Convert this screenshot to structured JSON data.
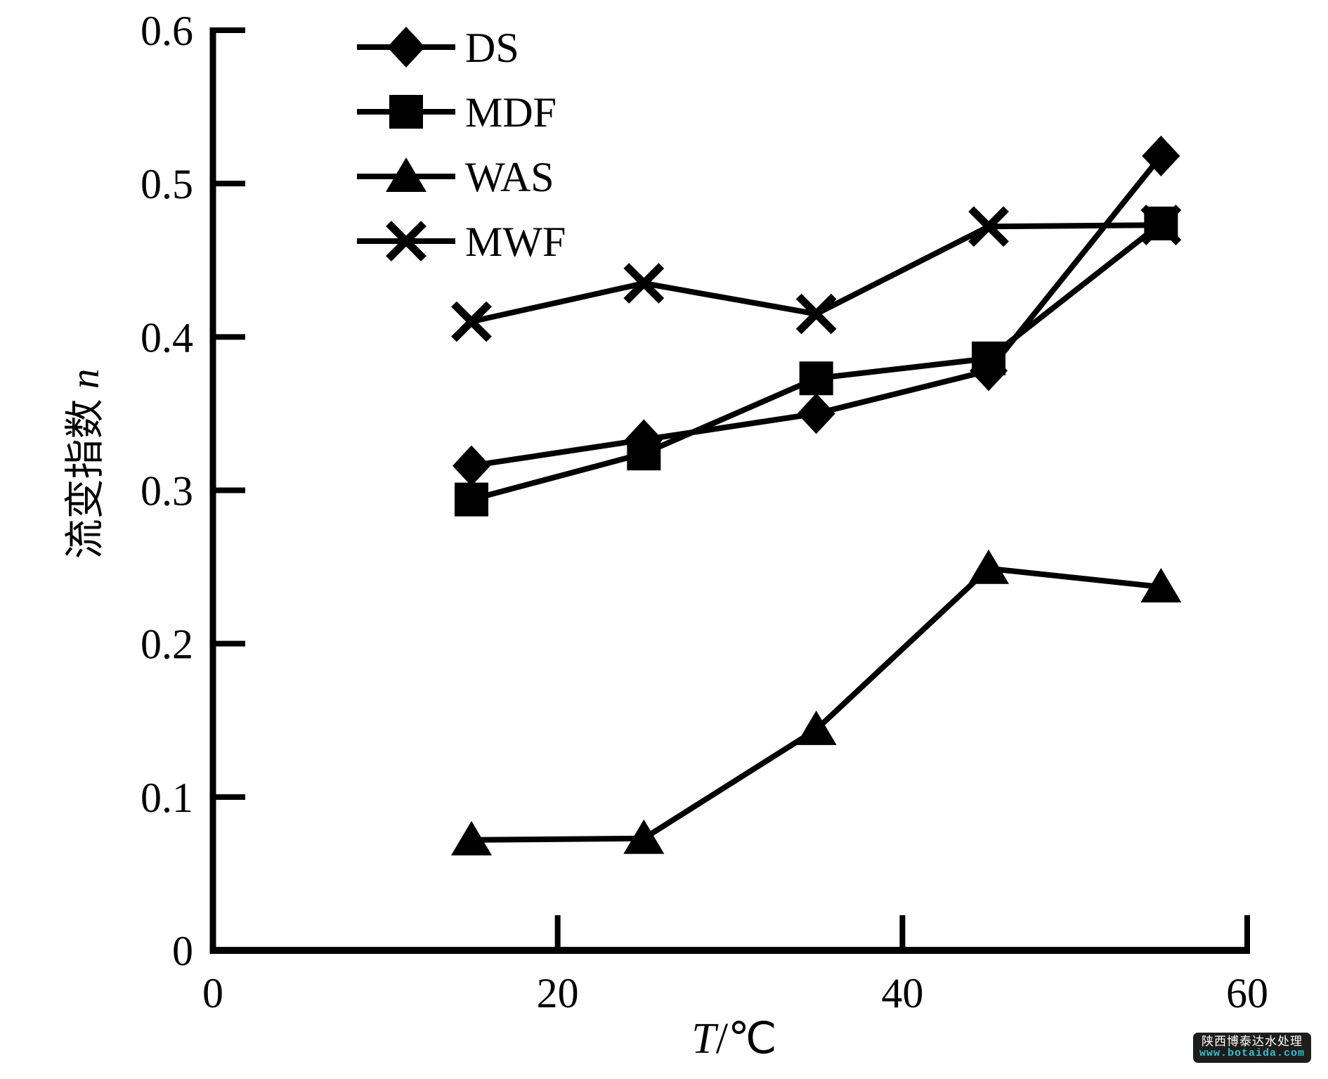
{
  "chart_data": {
    "type": "line",
    "xlabel": "T/℃",
    "xlabel_symbol": "T",
    "xlabel_rest": "/℃",
    "ylabel": "流变指数 n",
    "ylabel_text": "流变指数",
    "ylabel_symbol": "n",
    "xlim": [
      0,
      60
    ],
    "ylim": [
      0,
      0.6
    ],
    "xticks": [
      "0",
      "20",
      "40",
      "60"
    ],
    "yticks": [
      "0",
      "0.1",
      "0.2",
      "0.3",
      "0.4",
      "0.5",
      "0.6"
    ],
    "grid": false,
    "legend_position": "top-left-inside",
    "line_color": "#000000",
    "x": [
      15,
      25,
      35,
      45,
      55
    ],
    "series": [
      {
        "name": "DS",
        "marker": "diamond",
        "values": [
          0.316,
          0.333,
          0.35,
          0.378,
          0.518
        ]
      },
      {
        "name": "MDF",
        "marker": "square",
        "values": [
          0.294,
          0.324,
          0.373,
          0.386,
          0.474
        ]
      },
      {
        "name": "WAS",
        "marker": "triangle",
        "values": [
          0.072,
          0.073,
          0.144,
          0.249,
          0.237
        ]
      },
      {
        "name": "MWF",
        "marker": "x",
        "values": [
          0.41,
          0.435,
          0.415,
          0.472,
          0.473
        ]
      }
    ]
  },
  "watermark": {
    "line1": "陕西博泰达水处理",
    "line2": "www.botaida.com",
    "bg_color": "#1d1d1b",
    "line1_color": "#ffffff",
    "line2_color": "#2fc1d3"
  }
}
